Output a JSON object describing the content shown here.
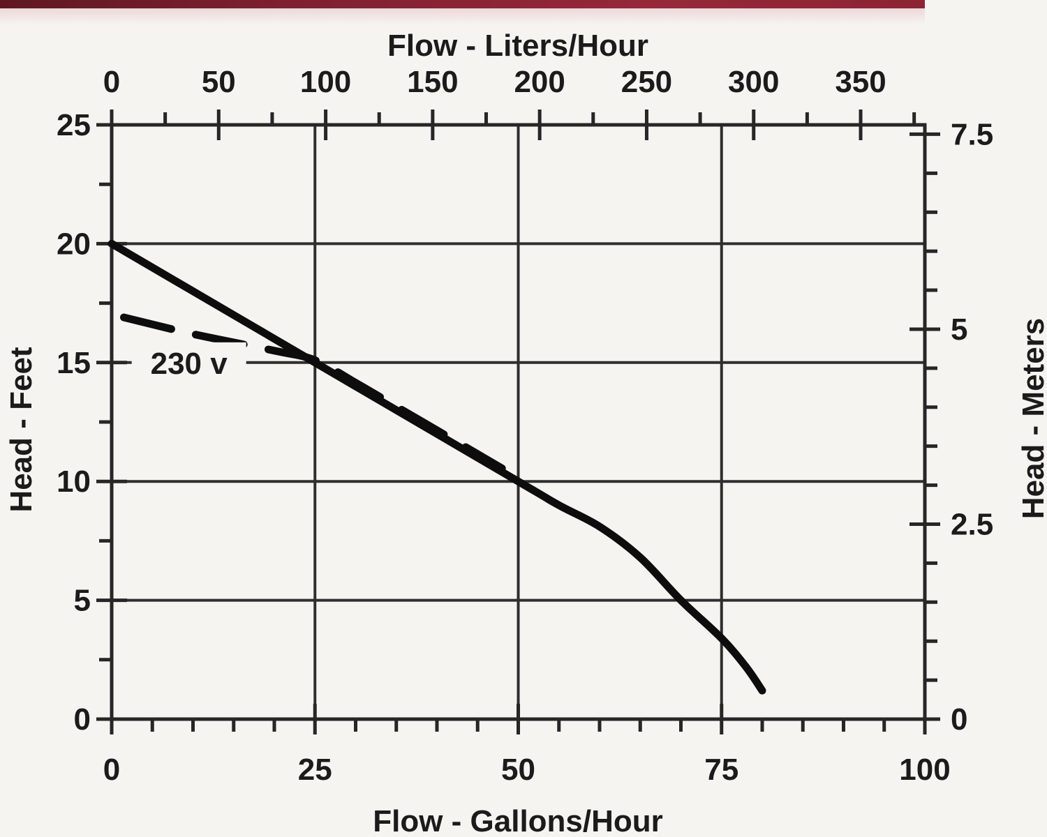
{
  "page": {
    "background_color": "#f6f4f1",
    "header_bar_colors": [
      "#5f1722",
      "#7d2030",
      "#96283a",
      "#8c2434"
    ]
  },
  "colors": {
    "line": "#262626",
    "grid": "#2e2e2e",
    "text": "#1b1b1b",
    "curve": "#0d0d0d"
  },
  "chart_data": {
    "type": "line",
    "title": "",
    "axes": {
      "top": {
        "label": "Flow - Liters/Hour",
        "range": [
          0,
          380
        ],
        "major_ticks": [
          0,
          50,
          100,
          150,
          200,
          250,
          300,
          350
        ],
        "minor_step": 25
      },
      "bottom": {
        "label": "Flow - Gallons/Hour",
        "range": [
          0,
          100
        ],
        "major_ticks": [
          0,
          25,
          50,
          75,
          100
        ],
        "minor_step": 5
      },
      "left": {
        "label": "Head - Feet",
        "range": [
          0,
          25
        ],
        "major_ticks": [
          0,
          5,
          10,
          15,
          20,
          25
        ],
        "minor_step": 2.5
      },
      "right": {
        "label": "Head - Meters",
        "range": [
          0,
          7.62
        ],
        "major_ticks": [
          0,
          2.5,
          5,
          7.5
        ],
        "minor_step": 0.5
      }
    },
    "grid": {
      "vertical_at_gallons": [
        25,
        50,
        75
      ],
      "horizontal_at_feet": [
        5,
        10,
        15,
        20
      ]
    },
    "series": [
      {
        "name": "pump-curve-main",
        "style": "solid",
        "points_gallons_feet": [
          [
            0,
            20
          ],
          [
            25,
            15
          ],
          [
            50,
            10
          ],
          [
            55,
            9
          ],
          [
            60,
            8.1
          ],
          [
            65,
            6.8
          ],
          [
            70,
            5
          ],
          [
            75,
            3.4
          ],
          [
            78,
            2.2
          ],
          [
            80,
            1.2
          ]
        ]
      },
      {
        "name": "pump-curve-230v",
        "style": "dashed",
        "points_gallons_feet": [
          [
            1.5,
            16.9
          ],
          [
            10,
            16.2
          ],
          [
            20,
            15.5
          ],
          [
            25,
            15.1
          ],
          [
            30,
            14.15
          ],
          [
            35,
            13.15
          ],
          [
            40,
            12.15
          ],
          [
            45,
            11.15
          ],
          [
            48,
            10.55
          ]
        ]
      }
    ],
    "annotations": [
      {
        "text": "230 v",
        "gallons": 9.5,
        "feet": 15
      }
    ]
  }
}
